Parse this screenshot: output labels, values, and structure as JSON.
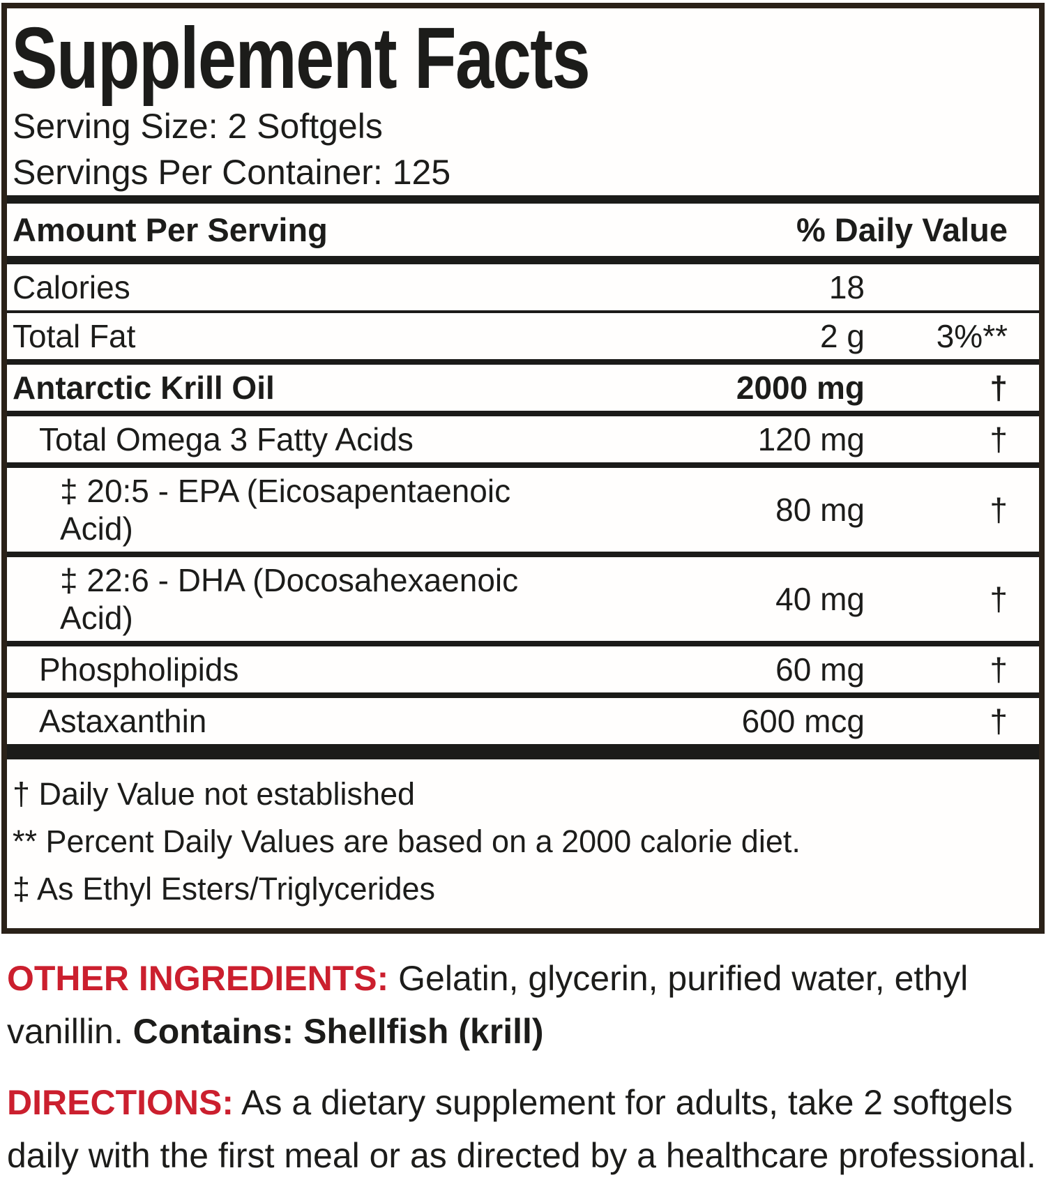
{
  "colors": {
    "accent_red": "#cb1f2e",
    "border": "#2a2118",
    "text": "#1c1c1a"
  },
  "panel": {
    "title": "Supplement Facts",
    "serving_size": "Serving Size: 2 Softgels",
    "servings_per_container": "Servings Per Container: 125",
    "header": {
      "left": "Amount Per Serving",
      "right": "% Daily Value"
    },
    "rows": [
      {
        "name": "Calories",
        "amount": "18",
        "dv": "",
        "indent": 0,
        "bold": false
      },
      {
        "name": "Total Fat",
        "amount": "2 g",
        "dv": "3%**",
        "indent": 0,
        "bold": false
      },
      {
        "name": "Antarctic Krill Oil",
        "amount": "2000 mg",
        "dv": "†",
        "indent": 0,
        "bold": true
      },
      {
        "name": "Total Omega 3 Fatty Acids",
        "amount": "120 mg",
        "dv": "†",
        "indent": 1,
        "bold": false
      },
      {
        "name": "‡ 20:5 - EPA (Eicosapentaenoic Acid)",
        "amount": "80 mg",
        "dv": "†",
        "indent": 2,
        "bold": false
      },
      {
        "name": "‡ 22:6 - DHA (Docosahexaenoic Acid)",
        "amount": "40 mg",
        "dv": "†",
        "indent": 2,
        "bold": false
      },
      {
        "name": "Phospholipids",
        "amount": "60 mg",
        "dv": "†",
        "indent": 1,
        "bold": false
      },
      {
        "name": "Astaxanthin",
        "amount": "600 mcg",
        "dv": "†",
        "indent": 1,
        "bold": false
      }
    ],
    "footnotes": [
      "† Daily Value not established",
      "** Percent Daily Values are based on a 2000 calorie diet.",
      "‡ As Ethyl Esters/Triglycerides"
    ]
  },
  "other_ingredients": {
    "label": "OTHER INGREDIENTS:",
    "text": " Gelatin, glycerin, purified water, ethyl vanillin. ",
    "contains": "Contains: Shellfish (krill)"
  },
  "directions": {
    "label": "DIRECTIONS:",
    "text": " As a dietary supplement for adults, take 2 softgels daily with the first meal or as directed by a healthcare professional."
  }
}
